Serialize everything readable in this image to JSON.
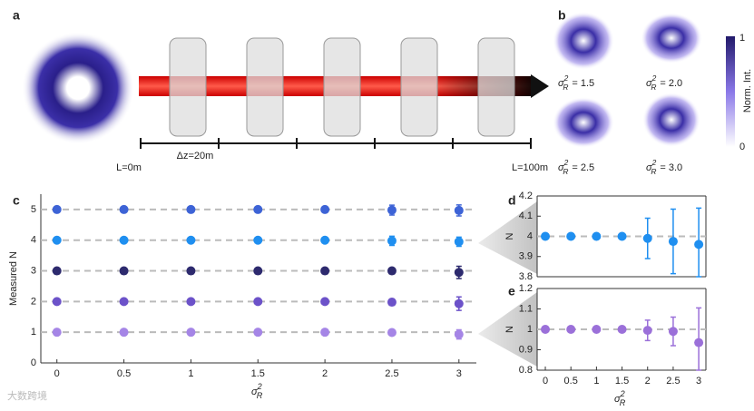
{
  "panel_labels": [
    "a",
    "b",
    "c",
    "d",
    "e"
  ],
  "diagram": {
    "step": "Δz=20m",
    "start": "L=0m",
    "end": "L=100m"
  },
  "intensity_maps": {
    "symbol": "σ",
    "superscript": "2",
    "subscript": "R",
    "labels": [
      "= 1.5",
      "= 2.0",
      "= 2.5",
      "= 3.0"
    ],
    "colorbar_max": "1",
    "colorbar_min": "0",
    "colorbar_label": "Norm. Int."
  },
  "watermark": "大数跨境",
  "chart_data": [
    {
      "type": "scatter",
      "ylabel": "Measured N",
      "xlabel": {
        "symbol": "σ",
        "superscript": "2",
        "subscript": "R"
      },
      "x": [
        0,
        0.5,
        1,
        1.5,
        2,
        2.5,
        3
      ],
      "xlim": [
        -0.12,
        3.13
      ],
      "xticks": [
        0,
        0.5,
        1,
        1.5,
        2,
        2.5,
        3
      ],
      "ylim": [
        0,
        5.5
      ],
      "yticks": [
        0,
        1,
        2,
        3,
        4,
        5
      ],
      "reference_lines": [
        1,
        2,
        3,
        4,
        5
      ],
      "series": [
        {
          "color": "#3d63d6",
          "values": [
            5,
            5,
            5,
            5,
            5,
            4.98,
            4.97
          ],
          "errors": [
            0,
            0,
            0,
            0,
            0,
            0.16,
            0.18
          ]
        },
        {
          "color": "#1f8ff0",
          "values": [
            4,
            4,
            4,
            4,
            4,
            3.98,
            3.95
          ],
          "errors": [
            0,
            0,
            0,
            0,
            0,
            0.15,
            0.15
          ]
        },
        {
          "color": "#2d2a6e",
          "values": [
            3,
            3,
            3,
            3,
            3,
            3,
            2.95
          ],
          "errors": [
            0,
            0,
            0,
            0,
            0,
            0.06,
            0.2
          ]
        },
        {
          "color": "#6c52c9",
          "values": [
            2,
            2,
            2,
            2,
            2,
            1.98,
            1.93
          ],
          "errors": [
            0,
            0,
            0,
            0,
            0,
            0.1,
            0.22
          ]
        },
        {
          "color": "#a585e6",
          "values": [
            1,
            1,
            1,
            1,
            1,
            0.99,
            0.93
          ],
          "errors": [
            0,
            0,
            0,
            0,
            0,
            0.06,
            0.15
          ]
        }
      ]
    },
    {
      "type": "scatter",
      "ylabel": "N",
      "x": [
        0,
        0.5,
        1,
        1.5,
        2,
        2.5,
        3
      ],
      "xlim": [
        -0.16,
        3.14
      ],
      "ylim": [
        3.8,
        4.2
      ],
      "yticks": [
        3.8,
        3.9,
        4,
        4.1,
        4.2
      ],
      "reference_lines": [
        4
      ],
      "series": [
        {
          "color": "#1f8ff0",
          "values": [
            4,
            4,
            4,
            4,
            3.99,
            3.975,
            3.96
          ],
          "errors": [
            0,
            0,
            0,
            0,
            0.1,
            0.16,
            0.18
          ]
        }
      ]
    },
    {
      "type": "scatter",
      "ylabel": "N",
      "xlabel": {
        "symbol": "σ",
        "superscript": "2",
        "subscript": "R"
      },
      "x": [
        0,
        0.5,
        1,
        1.5,
        2,
        2.5,
        3
      ],
      "xlim": [
        -0.16,
        3.14
      ],
      "xticks": [
        0,
        0.5,
        1,
        1.5,
        2,
        2.5,
        3
      ],
      "ylim": [
        0.8,
        1.2
      ],
      "yticks": [
        0.8,
        0.9,
        1,
        1.1,
        1.2
      ],
      "reference_lines": [
        1
      ],
      "series": [
        {
          "color": "#9b70d9",
          "values": [
            1,
            1,
            1,
            1,
            0.995,
            0.99,
            0.935
          ],
          "errors": [
            0,
            0,
            0,
            0,
            0.05,
            0.07,
            0.17
          ]
        }
      ]
    }
  ]
}
